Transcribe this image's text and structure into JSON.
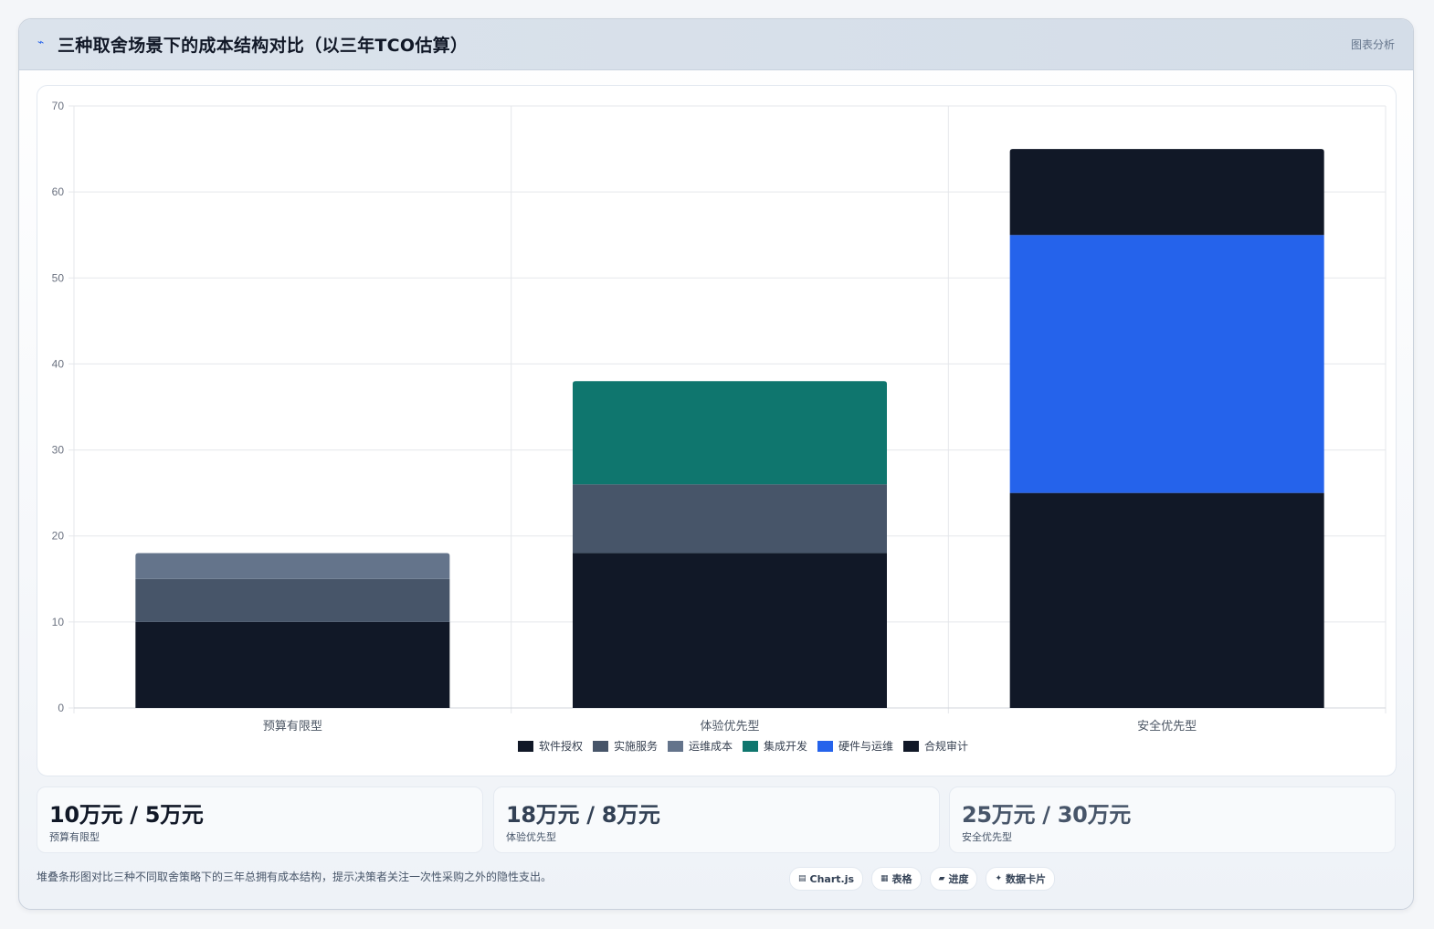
{
  "header": {
    "title": "三种取舍场景下的成本结构对比（以三年TCO估算）",
    "tag": "图表分析",
    "icon": "trend-line-icon"
  },
  "chart_data": {
    "type": "bar",
    "stacked": true,
    "categories": [
      "预算有限型",
      "体验优先型",
      "安全优先型"
    ],
    "series": [
      {
        "name": "软件授权",
        "color": "#111827",
        "values": [
          10,
          18,
          25
        ]
      },
      {
        "name": "实施服务",
        "color": "#475569",
        "values": [
          5,
          8,
          0
        ]
      },
      {
        "name": "运维成本",
        "color": "#64748b",
        "values": [
          3,
          0,
          0
        ]
      },
      {
        "name": "集成开发",
        "color": "#0f766e",
        "values": [
          0,
          12,
          0
        ]
      },
      {
        "name": "硬件与运维",
        "color": "#2563eb",
        "values": [
          0,
          0,
          30
        ]
      },
      {
        "name": "合规审计",
        "color": "#111827",
        "values": [
          0,
          0,
          10
        ]
      }
    ],
    "ylim": [
      0,
      70
    ],
    "yticks": [
      0,
      10,
      20,
      30,
      40,
      50,
      60,
      70
    ],
    "grid": true,
    "legend_position": "bottom-center",
    "title": "",
    "xlabel": "",
    "ylabel": ""
  },
  "stats": [
    {
      "value": "10万元 / 5万元",
      "label": "预算有限型",
      "color": "#111827"
    },
    {
      "value": "18万元 / 8万元",
      "label": "体验优先型",
      "color": "#334155"
    },
    {
      "value": "25万元 / 30万元",
      "label": "安全优先型",
      "color": "#475569"
    }
  ],
  "footnote": "堆叠条形图对比三种不同取舍策略下的三年总拥有成本结构，提示决策者关注一次性采购之外的隐性支出。",
  "chips": [
    {
      "label": "Chart.js",
      "icon": "chart-icon",
      "glyph": "▤"
    },
    {
      "label": "表格",
      "icon": "table-icon",
      "glyph": "▦"
    },
    {
      "label": "进度",
      "icon": "progress-icon",
      "glyph": "▰"
    },
    {
      "label": "数据卡片",
      "icon": "sparkle-icon",
      "glyph": "✦"
    }
  ]
}
